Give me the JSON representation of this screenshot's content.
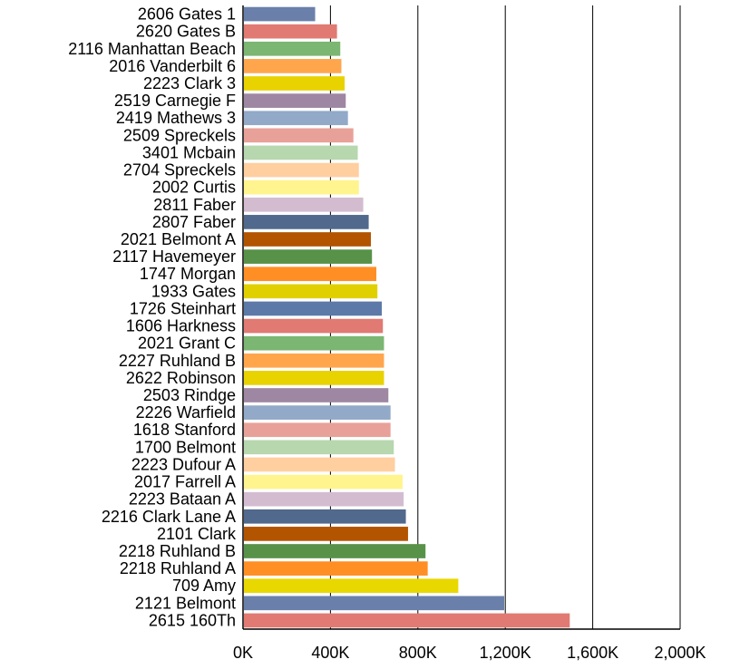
{
  "chart_data": {
    "type": "bar",
    "orientation": "horizontal",
    "title": "",
    "xlabel": "",
    "ylabel": "",
    "xlim": [
      0,
      2000000
    ],
    "x_ticks": [
      0,
      400000,
      800000,
      1200000,
      1600000,
      2000000
    ],
    "x_tick_labels": [
      "0K",
      "400K",
      "800K",
      "1,200K",
      "1,600K",
      "2,000K"
    ],
    "grid": "vertical gridlines at each x tick",
    "legend": "none",
    "categories": [
      "2606 Gates 1",
      "2620 Gates B",
      "2116 Manhattan Beach",
      "2016 Vanderbilt 6",
      "2223 Clark 3",
      "2519 Carnegie F",
      "2419 Mathews 3",
      "2509 Spreckels",
      "3401 Mcbain",
      "2704 Spreckels",
      "2002 Curtis",
      "2811 Faber",
      "2807 Faber",
      "2021 Belmont A",
      "2117 Havemeyer",
      "1747 Morgan",
      "1933 Gates",
      "1726 Steinhart",
      "1606 Harkness",
      "2021 Grant C",
      "2227 Ruhland B",
      "2622 Robinson",
      "2503 Rindge",
      "2226 Warfield",
      "1618 Stanford",
      "1700 Belmont",
      "2223 Dufour A",
      "2017 Farrell A",
      "2223 Bataan A",
      "2216 Clark Lane A",
      "2101 Clark",
      "2218 Ruhland B",
      "2218 Ruhland A",
      "709 Amy",
      "2121 Belmont",
      "2615 160Th"
    ],
    "values": [
      330000,
      430000,
      445000,
      450000,
      465000,
      470000,
      480000,
      505000,
      525000,
      530000,
      530000,
      550000,
      575000,
      585000,
      590000,
      610000,
      615000,
      635000,
      640000,
      645000,
      645000,
      645000,
      665000,
      675000,
      675000,
      690000,
      695000,
      730000,
      735000,
      745000,
      755000,
      835000,
      845000,
      985000,
      1195000,
      1495000
    ],
    "colors": [
      "#6a80ab",
      "#e07a72",
      "#7bb672",
      "#ffa64d",
      "#e8d200",
      "#9e87a2",
      "#92a9c8",
      "#e8a198",
      "#b7d7af",
      "#ffcfa0",
      "#fff48d",
      "#d3bcd0",
      "#51698c",
      "#b35400",
      "#579248",
      "#ff8f24",
      "#e0d000",
      "#5c79a8",
      "#e07a72",
      "#7bb672",
      "#ffa64d",
      "#e8d200",
      "#9e87a2",
      "#92a9c8",
      "#e8a198",
      "#b7d7af",
      "#ffcfa0",
      "#fff48d",
      "#d3bcd0",
      "#51698c",
      "#b35400",
      "#579248",
      "#ff8f24",
      "#e8d800",
      "#6a80ab",
      "#e07a72"
    ]
  }
}
